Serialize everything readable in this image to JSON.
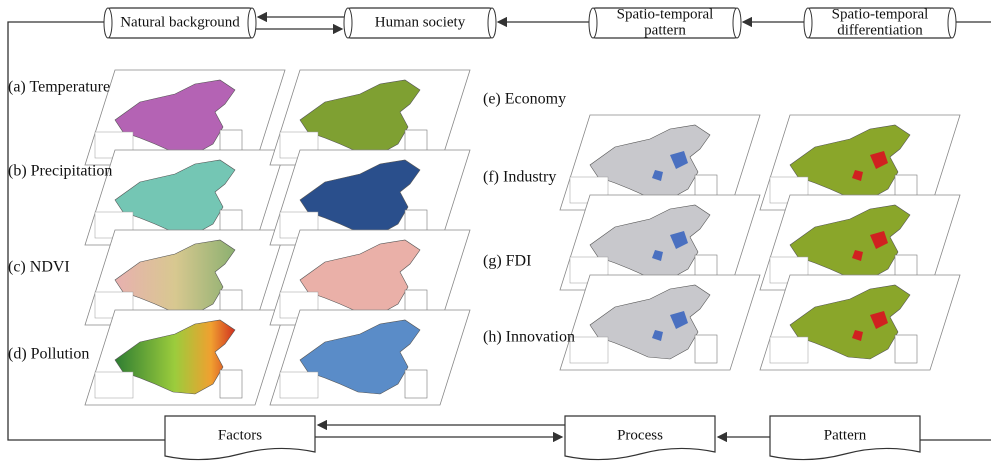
{
  "header": {
    "boxes": [
      {
        "lines": [
          "Natural background"
        ]
      },
      {
        "lines": [
          "Human society"
        ]
      },
      {
        "lines": [
          "Spatio-temporal",
          "pattern"
        ]
      },
      {
        "lines": [
          "Spatio-temporal",
          "differentiation"
        ]
      }
    ]
  },
  "layers": {
    "labels": [
      "(a) Temperature",
      "(b) Precipitation",
      "(c) NDVI",
      "(d) Pollution",
      "(e) Economy",
      "(f) Industry",
      "(g) FDI",
      "(h) Innovation"
    ]
  },
  "footer": {
    "boxes": [
      "Factors",
      "Process",
      "Pattern"
    ]
  }
}
